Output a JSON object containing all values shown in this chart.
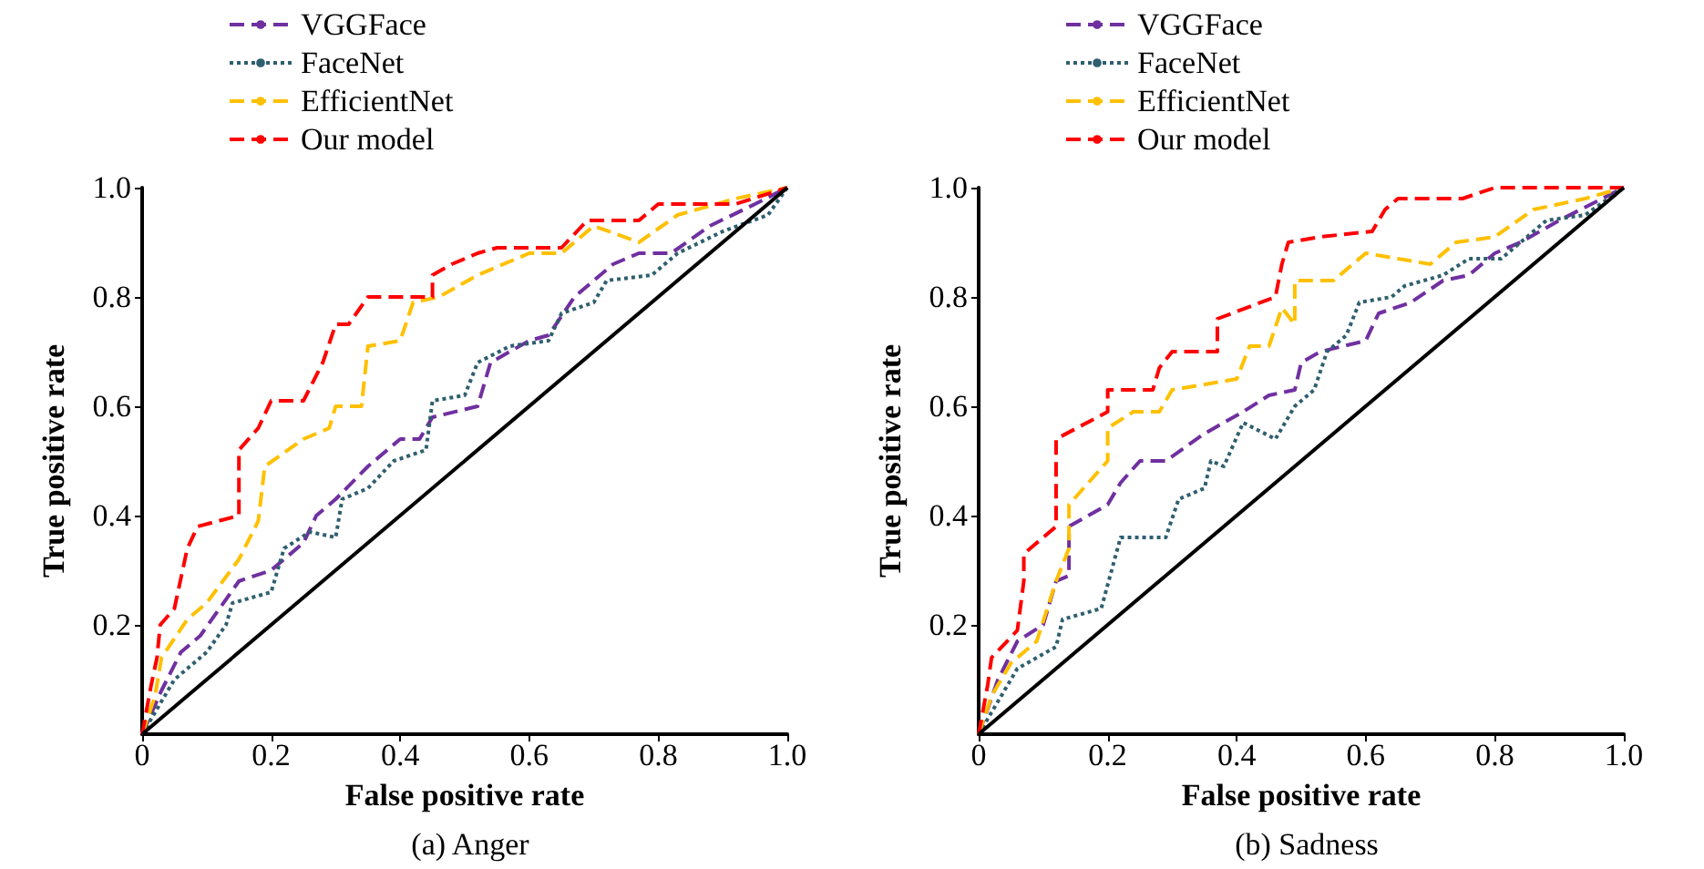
{
  "chart_data": [
    {
      "type": "line",
      "title": "(a) Anger",
      "xlabel": "False positive rate",
      "ylabel": "True positive rate",
      "xlim": [
        0,
        1
      ],
      "ylim": [
        0,
        1
      ],
      "xticks": [
        0,
        0.2,
        0.4,
        0.6,
        0.8,
        {
          "value": 1,
          "label": "1.0"
        }
      ],
      "yticks": [
        0.2,
        0.4,
        0.6,
        0.8,
        {
          "value": 1,
          "label": "1.0"
        }
      ],
      "grid": false,
      "legend": "top left",
      "marker": "none",
      "series": [
        {
          "name": "VGGFace",
          "color": "#7030a0",
          "line_style": "dashed",
          "x": [
            0,
            0.03,
            0.06,
            0.09,
            0.12,
            0.15,
            0.2,
            0.25,
            0.27,
            0.3,
            0.35,
            0.4,
            0.43,
            0.45,
            0.52,
            0.54,
            0.6,
            0.63,
            0.67,
            0.73,
            0.77,
            0.82,
            0.88,
            0.95,
            1
          ],
          "values": [
            0,
            0.08,
            0.15,
            0.18,
            0.23,
            0.28,
            0.3,
            0.35,
            0.4,
            0.43,
            0.49,
            0.54,
            0.54,
            0.58,
            0.6,
            0.68,
            0.72,
            0.73,
            0.8,
            0.86,
            0.88,
            0.88,
            0.93,
            0.97,
            1
          ]
        },
        {
          "name": "FaceNet",
          "color": "#2f5f6f",
          "line_style": "dotted",
          "x": [
            0,
            0.05,
            0.07,
            0.1,
            0.13,
            0.14,
            0.2,
            0.22,
            0.26,
            0.3,
            0.31,
            0.35,
            0.39,
            0.44,
            0.45,
            0.5,
            0.52,
            0.57,
            0.63,
            0.65,
            0.7,
            0.72,
            0.79,
            0.83,
            0.9,
            0.97,
            1
          ],
          "values": [
            0,
            0.1,
            0.12,
            0.15,
            0.2,
            0.24,
            0.26,
            0.34,
            0.37,
            0.36,
            0.43,
            0.45,
            0.5,
            0.52,
            0.61,
            0.62,
            0.68,
            0.71,
            0.72,
            0.77,
            0.79,
            0.83,
            0.84,
            0.88,
            0.92,
            0.95,
            1
          ]
        },
        {
          "name": "EfficientNet",
          "color": "#ffc000",
          "line_style": "dashed",
          "x": [
            0,
            0.02,
            0.03,
            0.07,
            0.1,
            0.15,
            0.18,
            0.19,
            0.25,
            0.29,
            0.3,
            0.34,
            0.35,
            0.4,
            0.42,
            0.46,
            0.52,
            0.6,
            0.65,
            0.7,
            0.77,
            0.83,
            0.92,
            1
          ],
          "values": [
            0,
            0.07,
            0.14,
            0.21,
            0.24,
            0.32,
            0.39,
            0.49,
            0.54,
            0.56,
            0.6,
            0.6,
            0.71,
            0.72,
            0.79,
            0.8,
            0.84,
            0.88,
            0.88,
            0.93,
            0.9,
            0.95,
            0.98,
            1
          ]
        },
        {
          "name": "Our model",
          "color": "#ff0000",
          "line_style": "dashed",
          "x": [
            0,
            0.014,
            0.023,
            0.028,
            0.05,
            0.07,
            0.086,
            0.15,
            0.15,
            0.18,
            0.2,
            0.25,
            0.28,
            0.3,
            0.32,
            0.35,
            0.45,
            0.45,
            0.48,
            0.52,
            0.55,
            0.65,
            0.69,
            0.77,
            0.8,
            0.92,
            1
          ],
          "values": [
            0,
            0.09,
            0.14,
            0.2,
            0.23,
            0.34,
            0.38,
            0.4,
            0.52,
            0.56,
            0.61,
            0.61,
            0.68,
            0.75,
            0.75,
            0.8,
            0.8,
            0.84,
            0.86,
            0.88,
            0.89,
            0.89,
            0.94,
            0.94,
            0.97,
            0.97,
            1
          ]
        },
        {
          "color": "#000000",
          "line_style": "solid",
          "x": [
            0,
            1
          ],
          "values": [
            0,
            1
          ]
        }
      ]
    },
    {
      "type": "line",
      "title": "(b) Sadness",
      "xlabel": "False positive rate",
      "ylabel": "True positive rate",
      "xlim": [
        0,
        1
      ],
      "ylim": [
        0,
        1
      ],
      "xticks": [
        0,
        0.2,
        0.4,
        0.6,
        0.8,
        {
          "value": 1,
          "label": "1.0"
        }
      ],
      "yticks": [
        0.2,
        0.4,
        0.6,
        0.8,
        {
          "value": 1,
          "label": "1.0"
        }
      ],
      "grid": false,
      "legend": "top left",
      "marker": "none",
      "series": [
        {
          "name": "VGGFace",
          "color": "#7030a0",
          "line_style": "dashed",
          "x": [
            0,
            0.03,
            0.06,
            0.1,
            0.12,
            0.14,
            0.14,
            0.2,
            0.22,
            0.25,
            0.29,
            0.35,
            0.41,
            0.45,
            0.49,
            0.5,
            0.53,
            0.6,
            0.62,
            0.67,
            0.72,
            0.76,
            0.8,
            0.84,
            0.9,
            1
          ],
          "values": [
            0,
            0.1,
            0.17,
            0.2,
            0.28,
            0.29,
            0.38,
            0.42,
            0.46,
            0.5,
            0.5,
            0.55,
            0.59,
            0.62,
            0.63,
            0.68,
            0.7,
            0.72,
            0.77,
            0.79,
            0.83,
            0.84,
            0.88,
            0.9,
            0.94,
            1
          ]
        },
        {
          "name": "FaceNet",
          "color": "#2f5f6f",
          "line_style": "dotted",
          "x": [
            0,
            0.06,
            0.12,
            0.13,
            0.19,
            0.22,
            0.29,
            0.31,
            0.35,
            0.36,
            0.38,
            0.41,
            0.46,
            0.49,
            0.52,
            0.54,
            0.57,
            0.59,
            0.64,
            0.66,
            0.72,
            0.76,
            0.81,
            0.84,
            0.88,
            0.94,
            1
          ],
          "values": [
            0,
            0.12,
            0.16,
            0.21,
            0.23,
            0.36,
            0.36,
            0.43,
            0.45,
            0.5,
            0.49,
            0.57,
            0.54,
            0.6,
            0.63,
            0.7,
            0.73,
            0.79,
            0.8,
            0.82,
            0.84,
            0.87,
            0.87,
            0.9,
            0.94,
            0.95,
            1
          ]
        },
        {
          "name": "EfficientNet",
          "color": "#ffc000",
          "line_style": "dashed",
          "x": [
            0,
            0.02,
            0.05,
            0.09,
            0.12,
            0.14,
            0.14,
            0.2,
            0.2,
            0.24,
            0.28,
            0.3,
            0.4,
            0.42,
            0.45,
            0.47,
            0.49,
            0.49,
            0.55,
            0.6,
            0.7,
            0.74,
            0.8,
            0.86,
            0.94,
            1
          ],
          "values": [
            0,
            0.07,
            0.13,
            0.17,
            0.28,
            0.34,
            0.42,
            0.5,
            0.56,
            0.59,
            0.59,
            0.63,
            0.65,
            0.71,
            0.71,
            0.78,
            0.75,
            0.83,
            0.83,
            0.88,
            0.86,
            0.9,
            0.91,
            0.96,
            0.98,
            1
          ]
        },
        {
          "name": "Our model",
          "color": "#ff0000",
          "line_style": "dashed",
          "x": [
            0,
            0.014,
            0.02,
            0.06,
            0.07,
            0.07,
            0.1,
            0.12,
            0.12,
            0.12,
            0.2,
            0.2,
            0.27,
            0.28,
            0.3,
            0.37,
            0.37,
            0.46,
            0.47,
            0.48,
            0.53,
            0.61,
            0.63,
            0.65,
            0.75,
            0.8,
            1
          ],
          "values": [
            0,
            0.09,
            0.14,
            0.19,
            0.28,
            0.33,
            0.36,
            0.38,
            0.5,
            0.54,
            0.59,
            0.63,
            0.63,
            0.67,
            0.7,
            0.7,
            0.76,
            0.8,
            0.86,
            0.9,
            0.91,
            0.92,
            0.96,
            0.98,
            0.98,
            1,
            1
          ]
        },
        {
          "color": "#000000",
          "line_style": "solid",
          "x": [
            0,
            1
          ],
          "values": [
            0,
            1
          ]
        }
      ]
    }
  ]
}
